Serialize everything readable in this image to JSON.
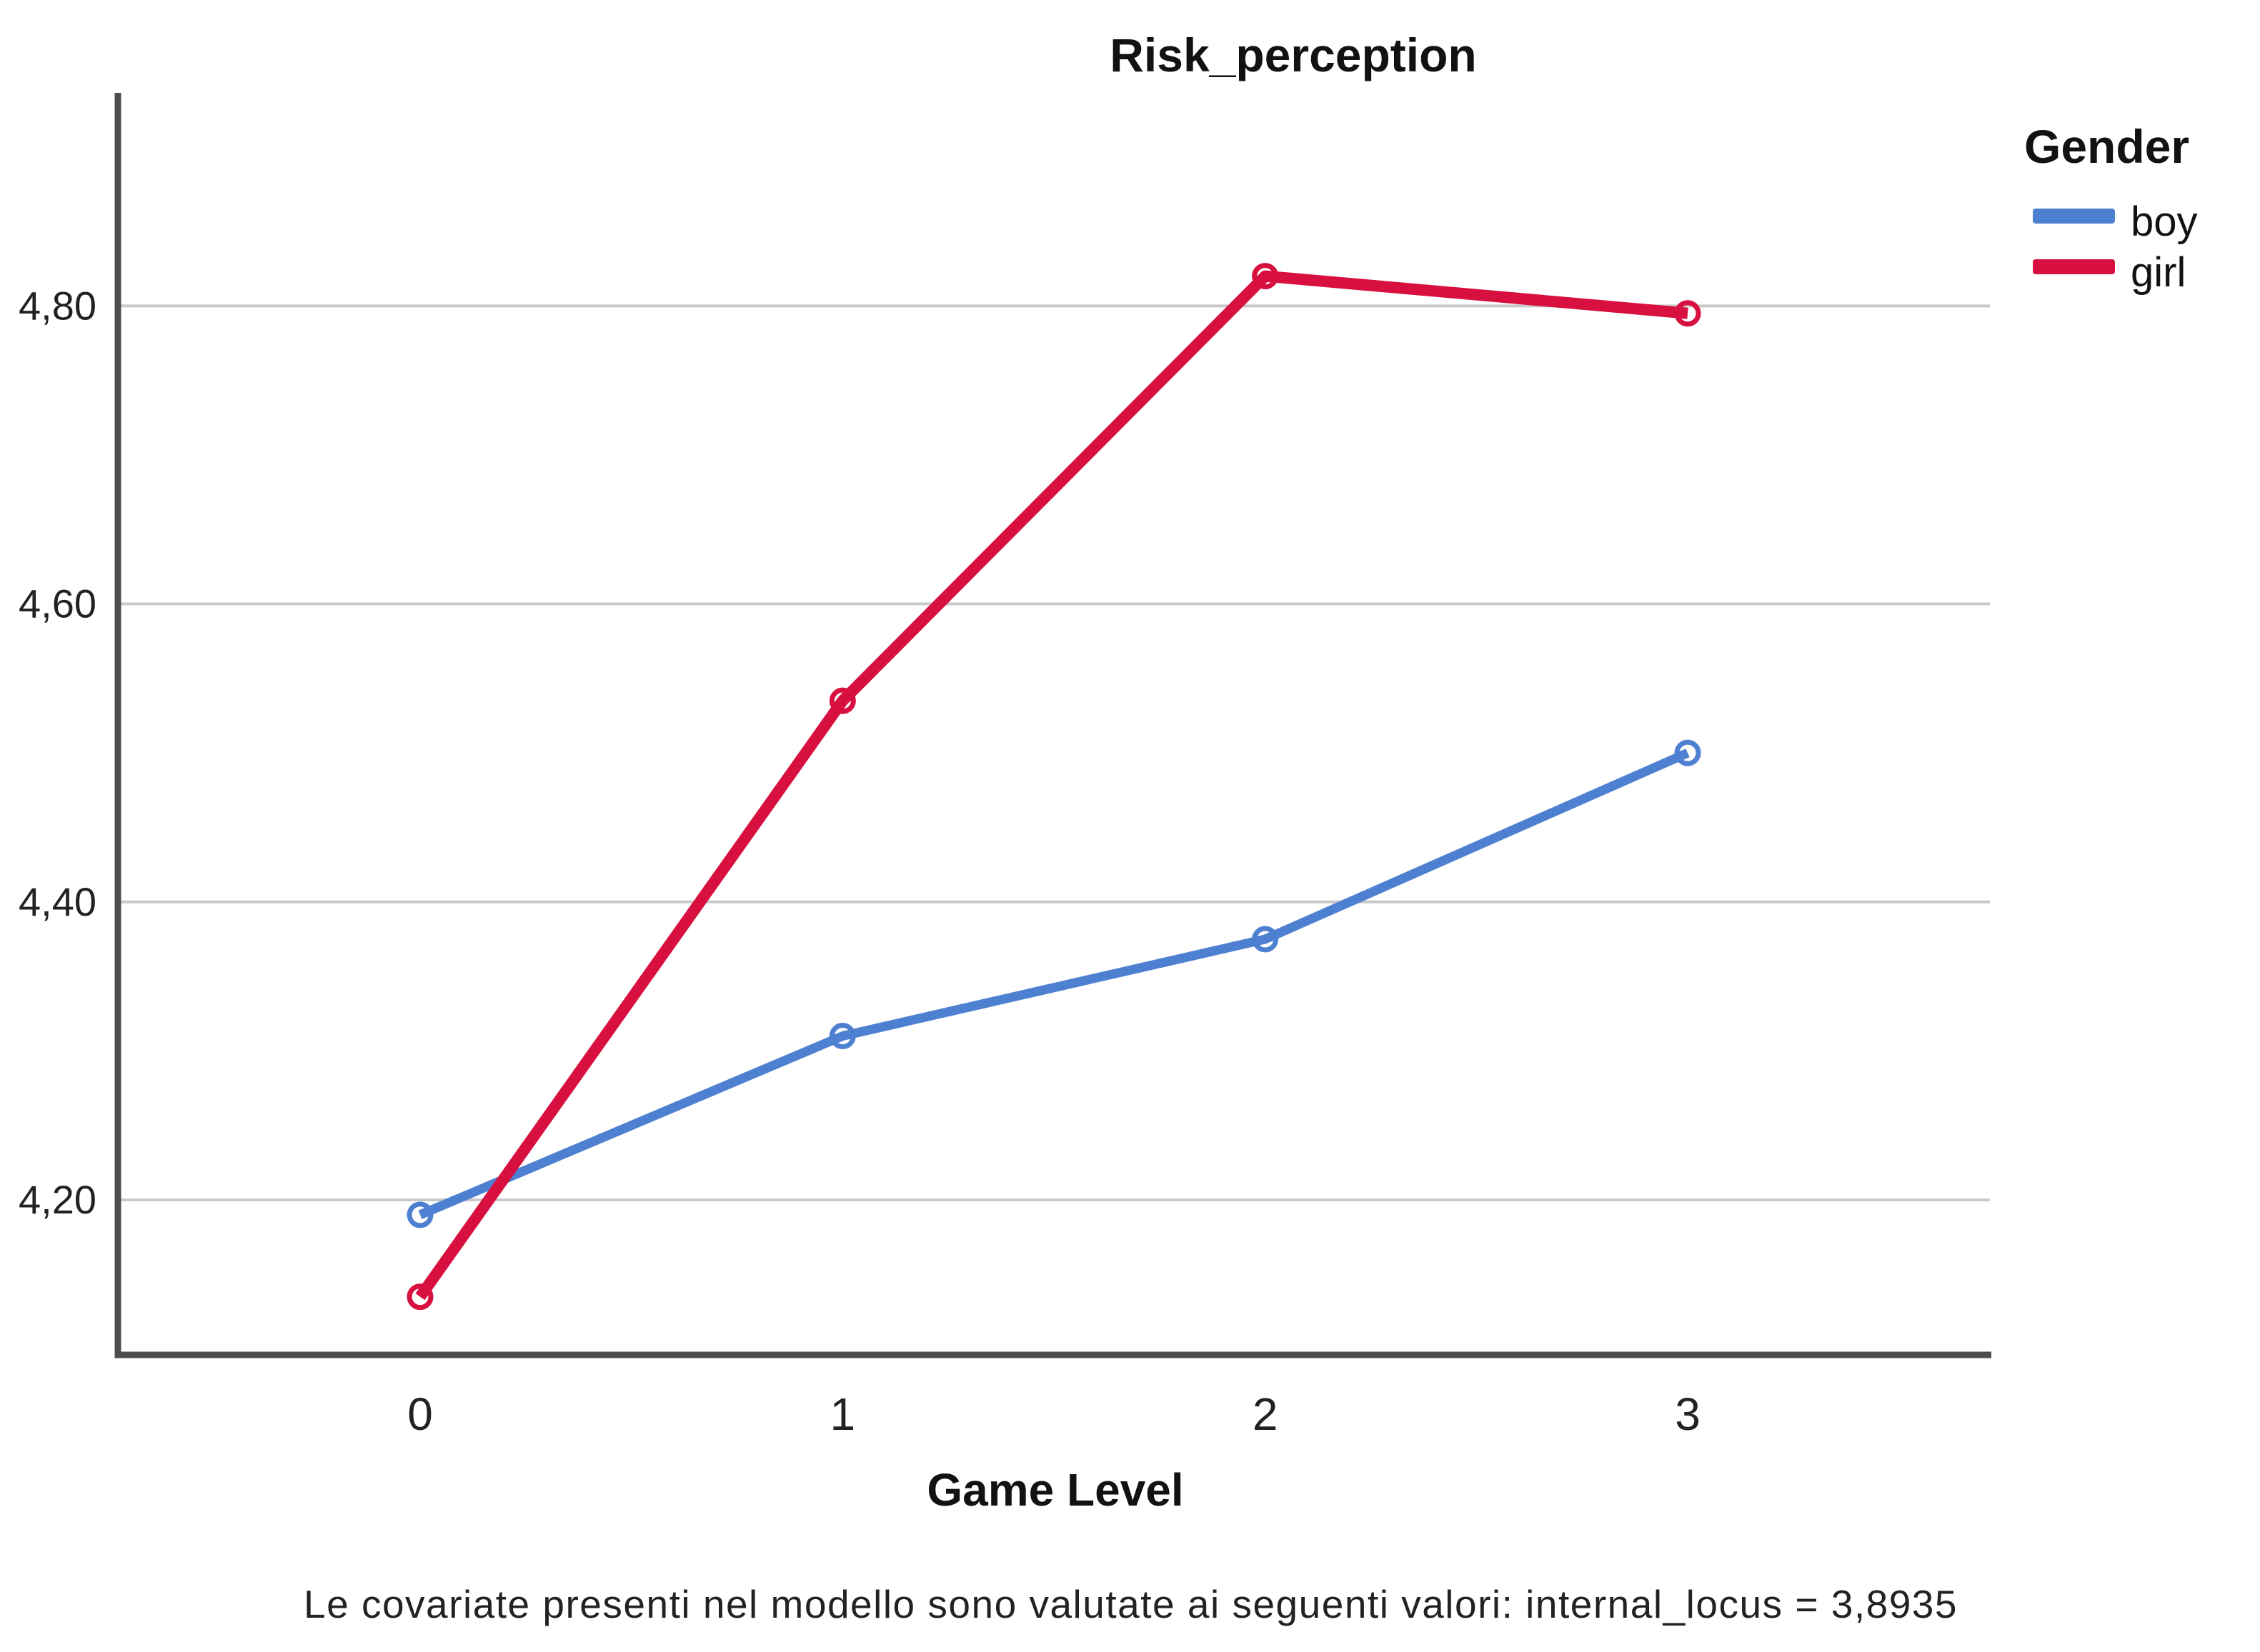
{
  "colors": {
    "background": "#ffffff",
    "axis": "#4d4d4d",
    "gridline": "#c9c9c9",
    "text": "#121212"
  },
  "chart_data": {
    "type": "line",
    "title": "Risk_perception",
    "xlabel": "Game Level",
    "ylabel": "",
    "legend_title": "Gender",
    "legend_position": "top-right",
    "grid": true,
    "marker": "open-circle",
    "x": [
      0,
      1,
      2,
      3
    ],
    "xtick_labels": [
      "0",
      "1",
      "2",
      "3"
    ],
    "series": [
      {
        "name": "boy",
        "color": "#4e80d1",
        "values": [
          4.19,
          4.31,
          4.375,
          4.5
        ]
      },
      {
        "name": "girl",
        "color": "#d8103f",
        "values": [
          4.135,
          4.535,
          4.82,
          4.795
        ]
      }
    ],
    "ylim": [
      4.096,
      4.943
    ],
    "yticks": [
      4.2,
      4.4,
      4.6,
      4.8
    ],
    "ytick_labels": [
      "4,20",
      "4,40",
      "4,60",
      "4,80"
    ],
    "footnote": "Le covariate presenti nel modello sono valutate ai seguenti valori: internal_locus = 3,8935"
  }
}
